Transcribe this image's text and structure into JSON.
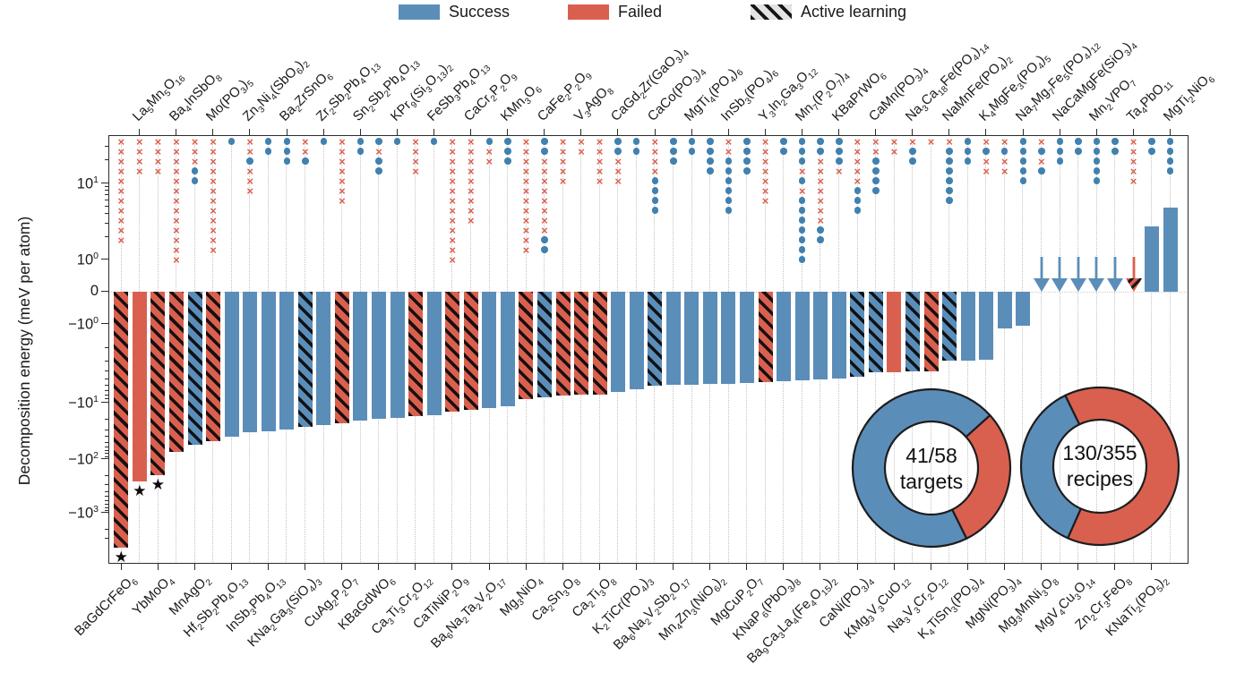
{
  "legend": {
    "items": [
      {
        "label": "Success",
        "color": "#5b8db9",
        "hatch": false
      },
      {
        "label": "Failed",
        "color": "#d9604f",
        "hatch": false
      },
      {
        "label": "Active learning",
        "color": "#e3e3e3",
        "hatch": true
      }
    ]
  },
  "y_axis": {
    "title": "Decomposition energy (meV per atom)",
    "ticks": [
      {
        "v": 10,
        "text": "10",
        "sup": "1"
      },
      {
        "v": 1,
        "text": "10",
        "sup": "0"
      },
      {
        "v": 0,
        "text": "0",
        "sup": ""
      },
      {
        "v": -1,
        "text": "−10",
        "sup": "0"
      },
      {
        "v": -10,
        "text": "−10",
        "sup": "1"
      },
      {
        "v": -100,
        "text": "−10",
        "sup": "2"
      },
      {
        "v": -1000,
        "text": "−10",
        "sup": "3"
      }
    ]
  },
  "chart_data": {
    "type": "bar",
    "ylabel": "Decomposition energy (meV per atom)",
    "yscale": "symlog",
    "marker_key": {
      "x": "failed recipe attempt (red cross)",
      "o": "successful recipe attempt (blue dot)"
    },
    "columns": [
      {
        "formula": "BaGdCrFeO6",
        "label_side": "bottom",
        "kind": "bar",
        "value": -4500,
        "status": "failed",
        "active_learning": true,
        "star": true,
        "markers": "xxxxxxxxxxx"
      },
      {
        "formula": "La5Mn5O16",
        "label_side": "top",
        "kind": "bar",
        "value": -260,
        "status": "failed",
        "active_learning": false,
        "star": true,
        "markers": "xxxx"
      },
      {
        "formula": "YbMoO4",
        "label_side": "bottom",
        "kind": "bar",
        "value": -200,
        "status": "failed",
        "active_learning": true,
        "star": true,
        "markers": "xxxx"
      },
      {
        "formula": "Ba4InSbO8",
        "label_side": "top",
        "kind": "bar",
        "value": -75,
        "status": "failed",
        "active_learning": true,
        "star": false,
        "markers": "xxxxxxxxxxxxx"
      },
      {
        "formula": "MnAgO2",
        "label_side": "bottom",
        "kind": "bar",
        "value": -55,
        "status": "success",
        "active_learning": true,
        "star": false,
        "markers": "xxxoo"
      },
      {
        "formula": "Mo(PO3)5",
        "label_side": "top",
        "kind": "bar",
        "value": -48,
        "status": "failed",
        "active_learning": true,
        "star": false,
        "markers": "xxxxxxxxxxxx"
      },
      {
        "formula": "Hf2Sb2Pb4O13",
        "label_side": "bottom",
        "kind": "bar",
        "value": -40,
        "status": "success",
        "active_learning": false,
        "star": false,
        "markers": "o"
      },
      {
        "formula": "Zn3Ni4(SbO6)2",
        "label_side": "top",
        "kind": "bar",
        "value": -34,
        "status": "success",
        "active_learning": false,
        "star": false,
        "markers": "xxoxxx"
      },
      {
        "formula": "InSb3Pb4O13",
        "label_side": "bottom",
        "kind": "bar",
        "value": -32,
        "status": "success",
        "active_learning": false,
        "star": false,
        "markers": "oo"
      },
      {
        "formula": "Ba2ZrSnO6",
        "label_side": "top",
        "kind": "bar",
        "value": -30,
        "status": "success",
        "active_learning": false,
        "star": false,
        "markers": "ooo"
      },
      {
        "formula": "KNa2Ga3(SiO4)3",
        "label_side": "bottom",
        "kind": "bar",
        "value": -27,
        "status": "success",
        "active_learning": true,
        "star": false,
        "markers": "xxo"
      },
      {
        "formula": "Zr2Sb2Pb4O13",
        "label_side": "top",
        "kind": "bar",
        "value": -25,
        "status": "success",
        "active_learning": false,
        "star": false,
        "markers": "o"
      },
      {
        "formula": "CuAg2P2O7",
        "label_side": "bottom",
        "kind": "bar",
        "value": -23,
        "status": "failed",
        "active_learning": true,
        "star": false,
        "markers": "xxxxxxx"
      },
      {
        "formula": "Sn2Sb2Pb4O13",
        "label_side": "top",
        "kind": "bar",
        "value": -21,
        "status": "success",
        "active_learning": false,
        "star": false,
        "markers": "oo"
      },
      {
        "formula": "KBaGdWO6",
        "label_side": "bottom",
        "kind": "bar",
        "value": -19.5,
        "status": "success",
        "active_learning": false,
        "star": false,
        "markers": "oxoo"
      },
      {
        "formula": "KPr9(Si3O13)2",
        "label_side": "top",
        "kind": "bar",
        "value": -18.5,
        "status": "success",
        "active_learning": false,
        "star": false,
        "markers": "o"
      },
      {
        "formula": "Ca3Ti3Cr2O12",
        "label_side": "bottom",
        "kind": "bar",
        "value": -17.5,
        "status": "failed",
        "active_learning": true,
        "star": false,
        "markers": "xxxx"
      },
      {
        "formula": "FeSb3Pb4O13",
        "label_side": "top",
        "kind": "bar",
        "value": -16.5,
        "status": "success",
        "active_learning": false,
        "star": false,
        "markers": "o"
      },
      {
        "formula": "CaTiNiP2O9",
        "label_side": "bottom",
        "kind": "bar",
        "value": -14.5,
        "status": "failed",
        "active_learning": true,
        "star": false,
        "markers": "xxxxxxxxxxxxx"
      },
      {
        "formula": "CaCr2P2O9",
        "label_side": "top",
        "kind": "bar",
        "value": -13.5,
        "status": "failed",
        "active_learning": true,
        "star": false,
        "markers": "xxxxxxxxx"
      },
      {
        "formula": "Ba6Na2Ta2V2O17",
        "label_side": "bottom",
        "kind": "bar",
        "value": -12.5,
        "status": "success",
        "active_learning": false,
        "star": false,
        "markers": "oxx"
      },
      {
        "formula": "KMn3O6",
        "label_side": "top",
        "kind": "bar",
        "value": -11.5,
        "status": "success",
        "active_learning": false,
        "star": false,
        "markers": "ooo"
      },
      {
        "formula": "Mg3NiO4",
        "label_side": "bottom",
        "kind": "bar",
        "value": -9,
        "status": "failed",
        "active_learning": true,
        "star": false,
        "markers": "xxxxxxxxxxxx"
      },
      {
        "formula": "CaFe2P2O9",
        "label_side": "top",
        "kind": "bar",
        "value": -8.6,
        "status": "success",
        "active_learning": true,
        "star": false,
        "markers": "ooxxxxxxxxoo"
      },
      {
        "formula": "Ca2Sn3O8",
        "label_side": "bottom",
        "kind": "bar",
        "value": -8.2,
        "status": "failed",
        "active_learning": true,
        "star": false,
        "markers": "xxxxx"
      },
      {
        "formula": "V3AgO8",
        "label_side": "top",
        "kind": "bar",
        "value": -8,
        "status": "failed",
        "active_learning": true,
        "star": false,
        "markers": "xx"
      },
      {
        "formula": "Ca2Ti3O8",
        "label_side": "bottom",
        "kind": "bar",
        "value": -7.8,
        "status": "failed",
        "active_learning": true,
        "star": false,
        "markers": "xxxxx"
      },
      {
        "formula": "CaGd2Zr(GaO3)4",
        "label_side": "top",
        "kind": "bar",
        "value": -7.4,
        "status": "success",
        "active_learning": false,
        "star": false,
        "markers": "ooxxx"
      },
      {
        "formula": "K2TiCr(PO4)3",
        "label_side": "bottom",
        "kind": "bar",
        "value": -6.8,
        "status": "success",
        "active_learning": false,
        "star": false,
        "markers": "oo"
      },
      {
        "formula": "CaCo(PO3)4",
        "label_side": "top",
        "kind": "bar",
        "value": -6.1,
        "status": "success",
        "active_learning": true,
        "star": false,
        "markers": "xxxxoooo"
      },
      {
        "formula": "Ba6Na2V2Sb2O17",
        "label_side": "bottom",
        "kind": "bar",
        "value": -6,
        "status": "success",
        "active_learning": false,
        "star": false,
        "markers": "ooo"
      },
      {
        "formula": "MgTi4(PO4)6",
        "label_side": "top",
        "kind": "bar",
        "value": -5.9,
        "status": "success",
        "active_learning": false,
        "star": false,
        "markers": "oo"
      },
      {
        "formula": "Mn4Zn3(NiO6)2",
        "label_side": "bottom",
        "kind": "bar",
        "value": -5.8,
        "status": "success",
        "active_learning": false,
        "star": false,
        "markers": "oooo"
      },
      {
        "formula": "InSb3(PO4)6",
        "label_side": "top",
        "kind": "bar",
        "value": -5.7,
        "status": "success",
        "active_learning": false,
        "star": false,
        "markers": "xxoooooo"
      },
      {
        "formula": "MgCuP2O7",
        "label_side": "bottom",
        "kind": "bar",
        "value": -5.6,
        "status": "success",
        "active_learning": false,
        "star": false,
        "markers": "oooo"
      },
      {
        "formula": "Y3In2Ga3O12",
        "label_side": "top",
        "kind": "bar",
        "value": -5.5,
        "status": "failed",
        "active_learning": true,
        "star": false,
        "markers": "xxxxxxx"
      },
      {
        "formula": "KNaP6(PbO3)8",
        "label_side": "bottom",
        "kind": "bar",
        "value": -5.4,
        "status": "success",
        "active_learning": false,
        "star": false,
        "markers": "oo"
      },
      {
        "formula": "Mn7(P2O7)4",
        "label_side": "top",
        "kind": "bar",
        "value": -5.2,
        "status": "success",
        "active_learning": false,
        "star": false,
        "markers": "oooxoxooooooo"
      },
      {
        "formula": "Ba9Ca3La4(Fe4O15)2",
        "label_side": "bottom",
        "kind": "bar",
        "value": -5,
        "status": "success",
        "active_learning": false,
        "star": false,
        "markers": "ooxxxxxxxoo"
      },
      {
        "formula": "KBaPrWO6",
        "label_side": "top",
        "kind": "bar",
        "value": -4.9,
        "status": "success",
        "active_learning": false,
        "star": false,
        "markers": "ooox"
      },
      {
        "formula": "CaNi(PO3)4",
        "label_side": "bottom",
        "kind": "bar",
        "value": -4.7,
        "status": "success",
        "active_learning": true,
        "star": false,
        "markers": "xxxxxooo"
      },
      {
        "formula": "CaMn(PO3)4",
        "label_side": "top",
        "kind": "bar",
        "value": -4.15,
        "status": "success",
        "active_learning": true,
        "star": false,
        "markers": "xxoooo"
      },
      {
        "formula": "KMg3V3CuO12",
        "label_side": "bottom",
        "kind": "bar",
        "value": -4.1,
        "status": "failed",
        "active_learning": false,
        "star": false,
        "markers": "xx"
      },
      {
        "formula": "Na3Ca18Fe(PO4)14",
        "label_side": "top",
        "kind": "bar",
        "value": -4.05,
        "status": "success",
        "active_learning": true,
        "star": false,
        "markers": "xoo"
      },
      {
        "formula": "Na3V3Cr2O12",
        "label_side": "bottom",
        "kind": "bar",
        "value": -4,
        "status": "failed",
        "active_learning": true,
        "star": false,
        "markers": "x"
      },
      {
        "formula": "NaMnFe(PO4)2",
        "label_side": "top",
        "kind": "bar",
        "value": -2.95,
        "status": "success",
        "active_learning": true,
        "star": false,
        "markers": "xoooooo"
      },
      {
        "formula": "K4TiSn3(PO5)4",
        "label_side": "bottom",
        "kind": "bar",
        "value": -2.9,
        "status": "success",
        "active_learning": false,
        "star": false,
        "markers": "ooo"
      },
      {
        "formula": "K4MgFe3(PO4)5",
        "label_side": "top",
        "kind": "bar",
        "value": -2.85,
        "status": "success",
        "active_learning": false,
        "star": false,
        "markers": "xoxx"
      },
      {
        "formula": "MgNi(PO3)4",
        "label_side": "bottom",
        "kind": "bar",
        "value": -1.15,
        "status": "success",
        "active_learning": false,
        "star": false,
        "markers": "xoxx"
      },
      {
        "formula": "Na7Mg7Fe5(PO4)12",
        "label_side": "top",
        "kind": "bar",
        "value": -1.05,
        "status": "success",
        "active_learning": false,
        "star": false,
        "markers": "ooooo"
      },
      {
        "formula": "Mg3MnNi3O8",
        "label_side": "bottom",
        "kind": "arrow",
        "value": null,
        "status": "success",
        "active_learning": false,
        "star": false,
        "markers": "xoxo"
      },
      {
        "formula": "NaCaMgFe(SiO3)4",
        "label_side": "top",
        "kind": "arrow",
        "value": null,
        "status": "success",
        "active_learning": false,
        "star": false,
        "markers": "ooo"
      },
      {
        "formula": "MgV4Cu3O14",
        "label_side": "bottom",
        "kind": "arrow",
        "value": null,
        "status": "success",
        "active_learning": false,
        "star": false,
        "markers": "oo"
      },
      {
        "formula": "Mn2VPO7",
        "label_side": "top",
        "kind": "arrow",
        "value": null,
        "status": "success",
        "active_learning": false,
        "star": false,
        "markers": "ooooo"
      },
      {
        "formula": "Zn2Cr3FeO8",
        "label_side": "bottom",
        "kind": "arrow",
        "value": null,
        "status": "success",
        "active_learning": false,
        "star": false,
        "markers": "oo"
      },
      {
        "formula": "Ta4PbO11",
        "label_side": "top",
        "kind": "arrow",
        "value": null,
        "status": "failed",
        "active_learning": true,
        "star": false,
        "markers": "xxxxx"
      },
      {
        "formula": "KNaTi2(PO5)2",
        "label_side": "bottom",
        "kind": "bar",
        "value": 2.7,
        "status": "success",
        "active_learning": false,
        "star": false,
        "markers": "oo"
      },
      {
        "formula": "MgTi2NiO6",
        "label_side": "top",
        "kind": "bar",
        "value": 4.8,
        "status": "success",
        "active_learning": false,
        "star": false,
        "markers": "oooo"
      }
    ]
  },
  "donuts": [
    {
      "value_text": "41/58",
      "label": "targets",
      "success": 41,
      "total": 58,
      "segments": [
        {
          "color": "blue",
          "start": 42,
          "end": 296.5
        },
        {
          "color": "red",
          "start": -63.5,
          "end": 42
        }
      ]
    },
    {
      "value_text": "130/355",
      "label": "recipes",
      "success": 130,
      "total": 355,
      "segments": [
        {
          "color": "blue",
          "start": 116,
          "end": 246
        },
        {
          "color": "red",
          "start": 246,
          "end": 476
        }
      ]
    }
  ],
  "colors": {
    "blue": "#5b8db9",
    "red": "#d9604f",
    "dot": "#4181af",
    "xmark": "#d9604f",
    "axis": "#2b2b2b",
    "grid": "#c3c3c3",
    "star": "#0a0a0a"
  }
}
